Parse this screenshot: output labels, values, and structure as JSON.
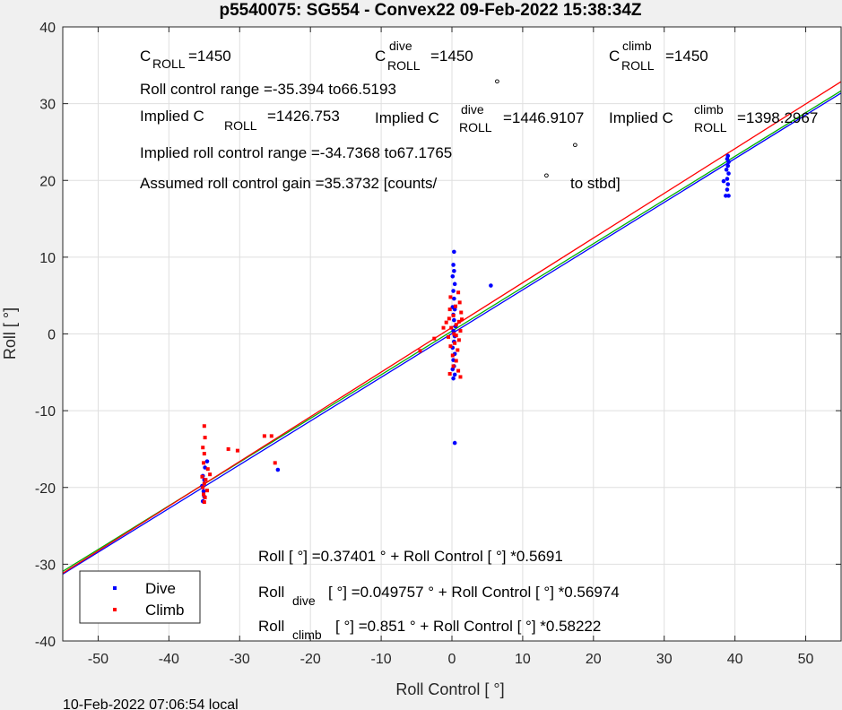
{
  "chart_data": {
    "type": "scatter",
    "title": "p5540075: SG554 - Convex22 09-Feb-2022 15:38:34Z",
    "xlabel": "Roll Control [   °]",
    "ylabel": "Roll [  °]",
    "xlim": [
      -55,
      55
    ],
    "ylim": [
      -40,
      40
    ],
    "xticks": [
      -50,
      -40,
      -30,
      -20,
      -10,
      0,
      10,
      20,
      30,
      40,
      50
    ],
    "yticks": [
      -40,
      -30,
      -20,
      -10,
      0,
      10,
      20,
      30,
      40
    ],
    "grid": true,
    "legend_position": "bottom-left",
    "footer": "10-Feb-2022 07:06:54 local",
    "colors": {
      "dive": "#0000ff",
      "climb": "#ff0000",
      "fit": "#00b000"
    },
    "series": [
      {
        "name": "Dive",
        "color": "#0000ff",
        "points": [
          [
            -35.2,
            -21.8
          ],
          [
            -35.0,
            -21.2
          ],
          [
            -35.1,
            -20.5
          ],
          [
            -35.3,
            -19.8
          ],
          [
            -35.0,
            -19.0
          ],
          [
            -35.2,
            -18.5
          ],
          [
            -34.9,
            -17.4
          ],
          [
            -34.6,
            -16.6
          ],
          [
            -24.6,
            -17.7
          ],
          [
            0.3,
            10.7
          ],
          [
            0.2,
            9.0
          ],
          [
            0.3,
            8.2
          ],
          [
            0.1,
            7.5
          ],
          [
            0.4,
            6.5
          ],
          [
            0.2,
            5.6
          ],
          [
            0.3,
            4.6
          ],
          [
            0.1,
            3.5
          ],
          [
            0.4,
            3.2
          ],
          [
            0.2,
            2.5
          ],
          [
            0.3,
            1.8
          ],
          [
            0.5,
            1.0
          ],
          [
            0.2,
            0.4
          ],
          [
            0.4,
            -0.3
          ],
          [
            0.3,
            -1.0
          ],
          [
            0.1,
            -1.8
          ],
          [
            0.4,
            -2.6
          ],
          [
            0.2,
            -3.4
          ],
          [
            0.3,
            -4.2
          ],
          [
            0.1,
            -4.6
          ],
          [
            0.4,
            -5.3
          ],
          [
            0.2,
            -5.8
          ],
          [
            0.4,
            -14.2
          ],
          [
            5.5,
            6.3
          ],
          [
            39.0,
            23.2
          ],
          [
            38.9,
            22.8
          ],
          [
            39.1,
            22.4
          ],
          [
            39.0,
            21.9
          ],
          [
            38.8,
            21.4
          ],
          [
            39.1,
            20.9
          ],
          [
            38.9,
            20.2
          ],
          [
            38.4,
            19.9
          ],
          [
            39.0,
            19.5
          ],
          [
            38.9,
            18.8
          ],
          [
            38.7,
            18.0
          ],
          [
            39.1,
            18.0
          ]
        ]
      },
      {
        "name": "Climb",
        "color": "#ff0000",
        "points": [
          [
            -35.0,
            -12.0
          ],
          [
            -34.9,
            -13.5
          ],
          [
            -35.2,
            -14.8
          ],
          [
            -35.0,
            -15.6
          ],
          [
            -35.1,
            -16.8
          ],
          [
            -34.5,
            -17.6
          ],
          [
            -34.2,
            -18.3
          ],
          [
            -35.3,
            -18.6
          ],
          [
            -34.8,
            -19.0
          ],
          [
            -35.0,
            -19.5
          ],
          [
            -35.2,
            -20.0
          ],
          [
            -34.6,
            -20.4
          ],
          [
            -35.1,
            -20.9
          ],
          [
            -34.9,
            -21.3
          ],
          [
            -35.0,
            -21.9
          ],
          [
            -30.3,
            -15.2
          ],
          [
            -31.6,
            -15.0
          ],
          [
            -26.5,
            -13.3
          ],
          [
            -25.5,
            -13.3
          ],
          [
            -25.0,
            -16.8
          ],
          [
            0.9,
            5.4
          ],
          [
            -0.2,
            4.8
          ],
          [
            1.1,
            4.1
          ],
          [
            0.5,
            3.6
          ],
          [
            -0.3,
            3.2
          ],
          [
            1.3,
            2.8
          ],
          [
            0.2,
            2.4
          ],
          [
            -0.4,
            2.0
          ],
          [
            1.0,
            1.6
          ],
          [
            0.6,
            1.2
          ],
          [
            -0.1,
            0.8
          ],
          [
            1.2,
            0.4
          ],
          [
            0.3,
            0.0
          ],
          [
            -0.5,
            -0.4
          ],
          [
            1.0,
            -0.8
          ],
          [
            0.4,
            -1.2
          ],
          [
            -0.2,
            -1.6
          ],
          [
            0.8,
            -2.1
          ],
          [
            0.1,
            -2.8
          ],
          [
            0.6,
            -3.5
          ],
          [
            0.2,
            -4.2
          ],
          [
            0.9,
            -4.8
          ],
          [
            -0.3,
            -5.2
          ],
          [
            1.2,
            -5.6
          ],
          [
            -4.5,
            -2.2
          ],
          [
            -2.5,
            -0.6
          ],
          [
            -1.2,
            0.8
          ],
          [
            0.6,
            -0.2
          ],
          [
            -0.8,
            1.5
          ],
          [
            1.4,
            1.9
          ]
        ]
      }
    ],
    "fit_lines": [
      {
        "name": "all",
        "color": "#00b000",
        "intercept": 0.37401,
        "slope": 0.5691
      },
      {
        "name": "dive",
        "color": "#0000ff",
        "intercept": 0.049757,
        "slope": 0.56974
      },
      {
        "name": "climb",
        "color": "#ff0000",
        "intercept": 0.851,
        "slope": 0.58222
      }
    ],
    "annotations": {
      "c_roll": "=1450",
      "c_roll_dive": "=1450",
      "c_roll_climb": "=1450",
      "roll_control_range": "Roll control range =-35.394 to66.5193",
      "implied_c_roll": "=1426.753",
      "implied_c_roll_dive": "=1446.9107",
      "implied_c_roll_climb": "=1398.2967",
      "implied_range": "Implied roll control range =-34.7368 to67.1765",
      "assumed_gain": "Assumed roll control gain =35.3732 [counts/",
      "to_stbd": "to stbd]",
      "fit_all": "Roll [  °] =0.37401     ° + Roll Control [     °] *0.5691",
      "fit_dive_a": "Roll",
      "fit_dive_sub": "dive",
      "fit_dive_b": "[  °] =0.049757     ° + Roll Control [     °] *0.56974",
      "fit_climb_a": "Roll",
      "fit_climb_sub": "climb",
      "fit_climb_b": "[  °] =0.851     ° + Roll Control [     °] *0.58222",
      "c_label": "C",
      "roll_sub": "ROLL",
      "dive_sup": "dive",
      "climb_sup": "climb",
      "implied_c": "Implied C",
      "degree": "°"
    }
  }
}
